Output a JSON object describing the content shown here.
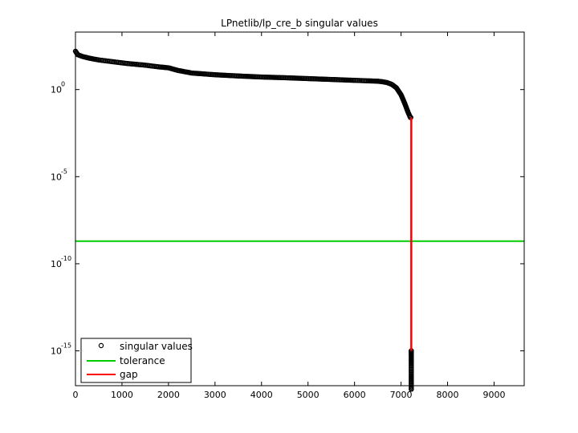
{
  "chart_data": {
    "type": "scatter",
    "title": "LPnetlib/lp_cre_b singular values",
    "xlabel": "",
    "ylabel": "",
    "xlim": [
      0,
      9648
    ],
    "xticks": [
      0,
      1000,
      2000,
      3000,
      4000,
      5000,
      6000,
      7000,
      8000,
      9000
    ],
    "xtick_labels": [
      "0",
      "1000",
      "2000",
      "3000",
      "4000",
      "5000",
      "6000",
      "7000",
      "8000",
      "9000"
    ],
    "ylog": true,
    "ylim_log10": [
      -17,
      3.3
    ],
    "yticks_log10": [
      0,
      -5,
      -10,
      -15
    ],
    "ytick_labels": [
      {
        "base": "10",
        "exp": "0"
      },
      {
        "base": "10",
        "exp": "-5"
      },
      {
        "base": "10",
        "exp": "-10"
      },
      {
        "base": "10",
        "exp": "-15"
      }
    ],
    "grid": false,
    "legend_position": "bottom-left",
    "series": [
      {
        "name": "singular values",
        "style": "markers",
        "color": "#000000",
        "x": [
          0,
          50,
          150,
          300,
          500,
          800,
          1100,
          1500,
          1800,
          2000,
          2200,
          2500,
          3000,
          3500,
          4000,
          4500,
          5000,
          5500,
          6000,
          6300,
          6500,
          6600,
          6700,
          6800,
          6900,
          7000,
          7080,
          7150,
          7200,
          7220,
          7220,
          7220,
          7220,
          7220
        ],
        "y_log10": [
          2.2,
          2.0,
          1.9,
          1.8,
          1.7,
          1.6,
          1.5,
          1.4,
          1.3,
          1.25,
          1.1,
          0.95,
          0.85,
          0.78,
          0.72,
          0.68,
          0.63,
          0.58,
          0.53,
          0.5,
          0.48,
          0.45,
          0.4,
          0.3,
          0.1,
          -0.3,
          -0.8,
          -1.3,
          -1.6,
          -1.6,
          -15.0,
          -15.2,
          -15.5,
          -17.2
        ]
      },
      {
        "name": "tolerance",
        "style": "line",
        "color": "#00cc00",
        "y_log10": -8.7
      },
      {
        "name": "gap",
        "style": "line",
        "color": "#ff0000",
        "x": 7220,
        "y_log10_range": [
          -15.0,
          -1.6
        ]
      }
    ]
  }
}
